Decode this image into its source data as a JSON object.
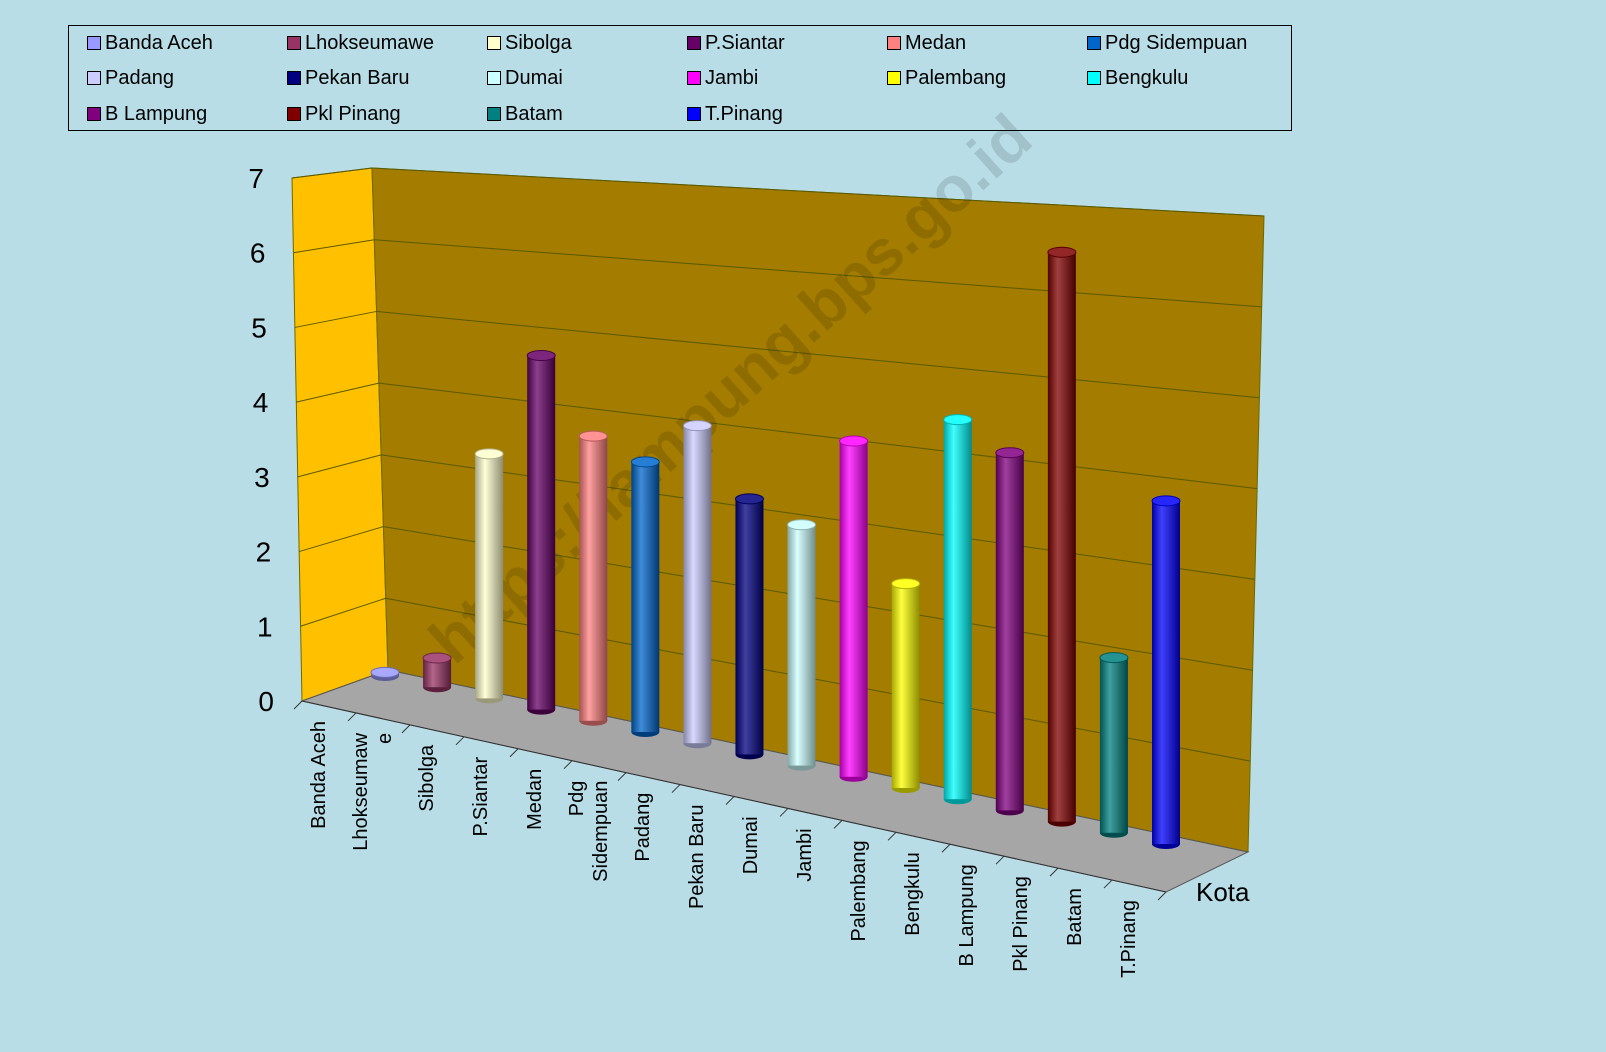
{
  "chart_data": {
    "type": "bar",
    "style": "3d-cylinder",
    "xlabel": "Kota",
    "ylabel": "",
    "ylim": [
      0,
      7
    ],
    "yticks": [
      "0",
      "1",
      "2",
      "3",
      "4",
      "5",
      "6",
      "7"
    ],
    "grid": true,
    "legend_position": "top",
    "categories": [
      "Banda Aceh",
      "Lhokseumawe",
      "Sibolga",
      "P.Siantar",
      "Medan",
      "Pdg Sidempuan",
      "Padang",
      "Pekan Baru",
      "Dumai",
      "Jambi",
      "Palembang",
      "Bengkulu",
      "B Lampung",
      "Pkl Pinang",
      "Batam",
      "T.Pinang"
    ],
    "category_labels": [
      "Banda Aceh",
      "Lhokseumaw\ne",
      "Sibolga",
      "P.Siantar",
      "Medan",
      "Pdg\nSidempuan",
      "Padang",
      "Pekan Baru",
      "Dumai",
      "Jambi",
      "Palembang",
      "Bengkulu",
      "B Lampung",
      "Pkl Pinang",
      "Batam",
      "T.Pinang"
    ],
    "series": [
      {
        "name": "Banda Aceh",
        "value": 0.05,
        "color": "#9999ff"
      },
      {
        "name": "Lhokseumawe",
        "value": 0.4,
        "color": "#993366"
      },
      {
        "name": "Sibolga",
        "value": 3.35,
        "color": "#ffffcc"
      },
      {
        "name": "P.Siantar",
        "value": 4.85,
        "color": "#660066"
      },
      {
        "name": "Medan",
        "value": 3.9,
        "color": "#ff8080"
      },
      {
        "name": "Pdg Sidempuan",
        "value": 3.7,
        "color": "#0066cc"
      },
      {
        "name": "Padang",
        "value": 4.35,
        "color": "#ccccff"
      },
      {
        "name": "Pekan Baru",
        "value": 3.5,
        "color": "#000080"
      },
      {
        "name": "Dumai",
        "value": 3.3,
        "color": "#ccffff"
      },
      {
        "name": "Jambi",
        "value": 4.6,
        "color": "#ff00ff"
      },
      {
        "name": "Palembang",
        "value": 2.8,
        "color": "#ffff00"
      },
      {
        "name": "Bengkulu",
        "value": 5.2,
        "color": "#00ffff"
      },
      {
        "name": "B Lampung",
        "value": 4.9,
        "color": "#800080"
      },
      {
        "name": "Pkl Pinang",
        "value": 7.8,
        "color": "#800000"
      },
      {
        "name": "Batam",
        "value": 2.4,
        "color": "#008080"
      },
      {
        "name": "T.Pinang",
        "value": 4.7,
        "color": "#0000ff"
      }
    ]
  },
  "watermark": "https://lampung.bps.go.id",
  "colors": {
    "background": "#b9dde7",
    "back_wall": "#a37c00",
    "side_wall": "#ffc000",
    "floor": "#a6a6a6"
  }
}
